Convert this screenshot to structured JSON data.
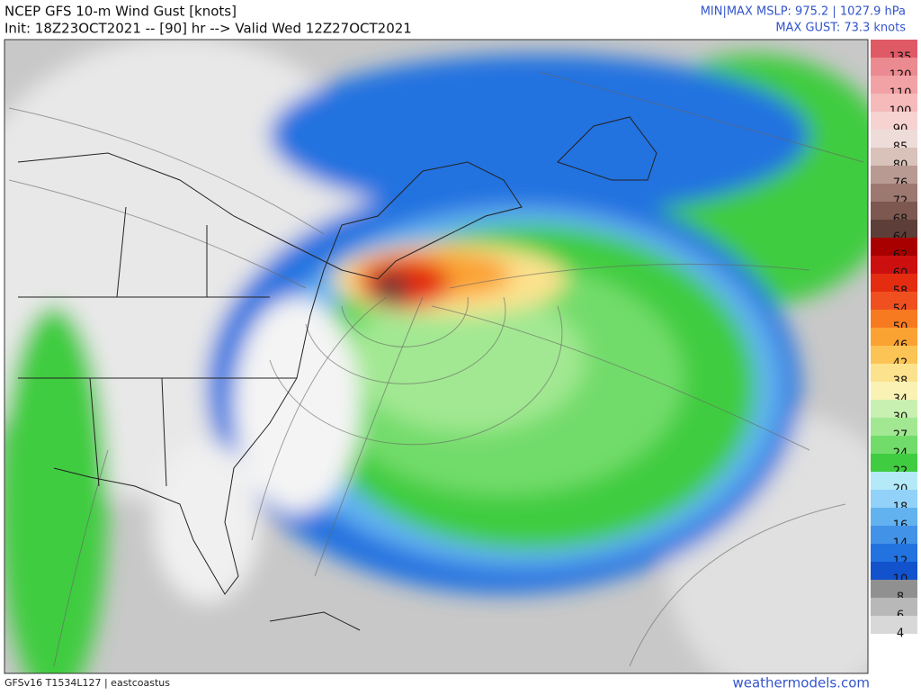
{
  "header": {
    "title": "NCEP GFS 10-m Wind Gust [knots]",
    "subtitle": "Init: 18Z23OCT2021 -- [90] hr --> Valid Wed 12Z27OCT2021",
    "mslp": "MIN|MAX MSLP: 975.2 | 1027.9 hPa",
    "max_gust": "MAX GUST: 73.3 knots"
  },
  "legend": {
    "levels": [
      {
        "label": "135",
        "color": "#e05a66"
      },
      {
        "label": "120",
        "color": "#eb8a90"
      },
      {
        "label": "110",
        "color": "#f2a2a4"
      },
      {
        "label": "100",
        "color": "#f6baba"
      },
      {
        "label": "90",
        "color": "#f6d2d0"
      },
      {
        "label": "85",
        "color": "#eedcd8"
      },
      {
        "label": "80",
        "color": "#d8c2ba"
      },
      {
        "label": "76",
        "color": "#b89a92"
      },
      {
        "label": "72",
        "color": "#9c7870"
      },
      {
        "label": "68",
        "color": "#7c5850"
      },
      {
        "label": "64",
        "color": "#5e3e38"
      },
      {
        "label": "62",
        "color": "#a80000"
      },
      {
        "label": "60",
        "color": "#cc1010"
      },
      {
        "label": "58",
        "color": "#e42c10"
      },
      {
        "label": "54",
        "color": "#f05020"
      },
      {
        "label": "50",
        "color": "#f87a20"
      },
      {
        "label": "46",
        "color": "#fba232"
      },
      {
        "label": "42",
        "color": "#fcc454"
      },
      {
        "label": "38",
        "color": "#fde28e"
      },
      {
        "label": "34",
        "color": "#faf2b4"
      },
      {
        "label": "30",
        "color": "#c8f0b0"
      },
      {
        "label": "27",
        "color": "#a2e892"
      },
      {
        "label": "24",
        "color": "#72dc6a"
      },
      {
        "label": "22",
        "color": "#40cc40"
      },
      {
        "label": "20",
        "color": "#b4eaf8"
      },
      {
        "label": "18",
        "color": "#92d2f8"
      },
      {
        "label": "16",
        "color": "#62b2f0"
      },
      {
        "label": "14",
        "color": "#4292e8"
      },
      {
        "label": "12",
        "color": "#2272e0"
      },
      {
        "label": "10",
        "color": "#1252cc"
      },
      {
        "label": "8",
        "color": "#909090"
      },
      {
        "label": "6",
        "color": "#b8b8b8"
      },
      {
        "label": "4",
        "color": "#d8d8d8"
      }
    ]
  },
  "footer": {
    "model": "GFSv16 T1534L127 | eastcoastus",
    "site": "weathermodels.com"
  }
}
